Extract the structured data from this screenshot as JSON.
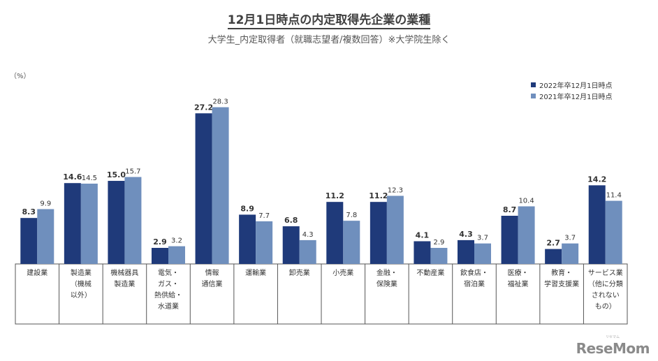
{
  "title": "12月1日時点の内定取得先企業の業種",
  "subtitle": "大学生_内定取得者（就職志望者/複数回答）※大学院生除く",
  "unit_label": "（%）",
  "colors": {
    "series_2022": "#1f3a7a",
    "series_2021": "#6f8fbd"
  },
  "watermark": "ReseMom",
  "watermark_ruby": "リセマム",
  "chart_data": {
    "type": "bar",
    "categories": [
      [
        "建設業"
      ],
      [
        "製造業",
        "（機械",
        "以外）"
      ],
      [
        "機械器具",
        "製造業"
      ],
      [
        "電気・",
        "ガス・",
        "熱供給・",
        "水道業"
      ],
      [
        "情報",
        "通信業"
      ],
      [
        "運輸業"
      ],
      [
        "卸売業"
      ],
      [
        "小売業"
      ],
      [
        "金融・",
        "保険業"
      ],
      [
        "不動産業"
      ],
      [
        "飲食店・",
        "宿泊業"
      ],
      [
        "医療・",
        "福祉業"
      ],
      [
        "教育・",
        "学習支援業"
      ],
      [
        "サービス業",
        "（他に分類",
        "されない",
        "もの）"
      ]
    ],
    "series": [
      {
        "name": "2022年卒12月1日時点",
        "values": [
          8.3,
          14.6,
          15.0,
          2.9,
          27.2,
          8.9,
          6.8,
          11.2,
          11.2,
          4.1,
          4.3,
          8.7,
          2.7,
          14.2
        ]
      },
      {
        "name": "2021年卒12月1日時点",
        "values": [
          9.9,
          14.5,
          15.7,
          3.2,
          28.3,
          7.7,
          4.3,
          7.8,
          12.3,
          2.9,
          3.7,
          10.4,
          3.7,
          11.4
        ]
      }
    ],
    "ylim": [
      0,
      30
    ],
    "legend_position": "top-right",
    "grid": false
  }
}
